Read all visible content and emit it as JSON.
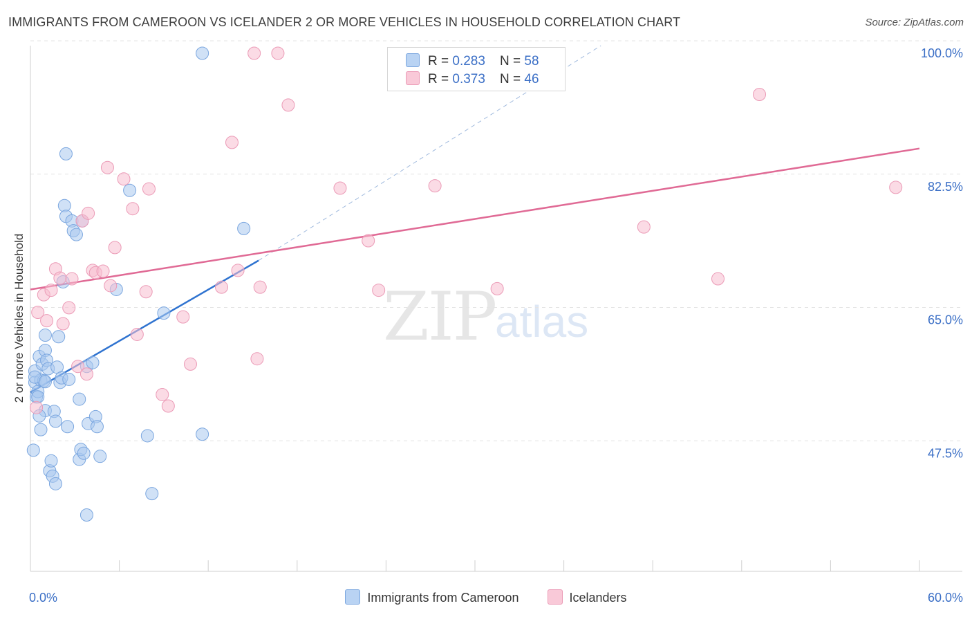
{
  "chart_data": {
    "type": "scatter",
    "title": "IMMIGRANTS FROM CAMEROON VS ICELANDER 2 OR MORE VEHICLES IN HOUSEHOLD CORRELATION CHART",
    "source": "Source: ZipAtlas.com",
    "xlabel": "",
    "ylabel": "2 or more Vehicles in Household",
    "xlim": [
      0,
      60
    ],
    "ylim": [
      32,
      101
    ],
    "x_tick_labels": [
      "0.0%",
      "60.0%"
    ],
    "y_ticks": [
      {
        "value": 100.0,
        "label": "100.0%"
      },
      {
        "value": 82.5,
        "label": "82.5%"
      },
      {
        "value": 65.0,
        "label": "65.0%"
      },
      {
        "value": 47.5,
        "label": "47.5%"
      }
    ],
    "watermark": {
      "zip": "ZIP",
      "atlas": "atlas"
    },
    "legend": [
      {
        "label": "R = ",
        "r": "0.283",
        "n_label": "N = ",
        "n": "58"
      },
      {
        "label": "R = ",
        "r": "0.373",
        "n_label": "N = ",
        "n": "46"
      }
    ],
    "series": [
      {
        "name": "Immigrants from Cameroon",
        "color": "#a9c8ef",
        "stroke": "#7aa6df",
        "line_color": "#2f73d0",
        "trend": {
          "x0": 0.0,
          "y0": 55.5,
          "x1": 15.4,
          "y1": 72.8,
          "dash_to_x": 38.5,
          "dash_to_y": 101
        },
        "points": [
          [
            0.2,
            47.9
          ],
          [
            0.3,
            58.3
          ],
          [
            0.3,
            56.8
          ],
          [
            0.4,
            54.9
          ],
          [
            0.5,
            55.6
          ],
          [
            0.6,
            60.2
          ],
          [
            0.7,
            50.6
          ],
          [
            0.7,
            57.1
          ],
          [
            0.8,
            59.2
          ],
          [
            0.9,
            57.0
          ],
          [
            1.0,
            61.0
          ],
          [
            1.0,
            63.0
          ],
          [
            1.0,
            53.1
          ],
          [
            1.1,
            59.7
          ],
          [
            1.2,
            58.6
          ],
          [
            1.3,
            45.2
          ],
          [
            1.4,
            46.5
          ],
          [
            1.5,
            44.5
          ],
          [
            1.6,
            53.0
          ],
          [
            1.7,
            43.5
          ],
          [
            1.7,
            51.7
          ],
          [
            1.8,
            58.8
          ],
          [
            1.9,
            62.8
          ],
          [
            2.0,
            56.8
          ],
          [
            2.1,
            57.4
          ],
          [
            2.2,
            70.0
          ],
          [
            2.3,
            80.0
          ],
          [
            2.4,
            78.6
          ],
          [
            2.4,
            86.8
          ],
          [
            2.5,
            51.0
          ],
          [
            2.6,
            57.2
          ],
          [
            2.8,
            78.0
          ],
          [
            2.9,
            76.7
          ],
          [
            3.1,
            76.2
          ],
          [
            3.3,
            54.6
          ],
          [
            3.3,
            46.7
          ],
          [
            3.4,
            48.0
          ],
          [
            3.5,
            78.0
          ],
          [
            3.6,
            47.5
          ],
          [
            3.8,
            39.4
          ],
          [
            3.8,
            58.9
          ],
          [
            3.9,
            51.4
          ],
          [
            4.2,
            59.4
          ],
          [
            4.4,
            52.3
          ],
          [
            4.5,
            51.0
          ],
          [
            4.7,
            47.1
          ],
          [
            5.8,
            69.0
          ],
          [
            6.7,
            82.0
          ],
          [
            7.9,
            49.8
          ],
          [
            8.2,
            42.2
          ],
          [
            9.0,
            65.9
          ],
          [
            11.6,
            100.0
          ],
          [
            11.6,
            50.0
          ],
          [
            14.4,
            77.0
          ],
          [
            0.3,
            57.5
          ],
          [
            0.5,
            54.9
          ],
          [
            0.6,
            52.4
          ],
          [
            1.0,
            56.9
          ]
        ]
      },
      {
        "name": "Icelanders",
        "color": "#f7bdd0",
        "stroke": "#eb9ab6",
        "line_color": "#e06a95",
        "trend": {
          "x0": 0.0,
          "y0": 69.0,
          "x1": 60.0,
          "y1": 87.5
        },
        "points": [
          [
            0.4,
            53.5
          ],
          [
            0.5,
            66.0
          ],
          [
            0.9,
            68.3
          ],
          [
            1.1,
            64.9
          ],
          [
            1.4,
            68.9
          ],
          [
            1.7,
            71.7
          ],
          [
            2.0,
            70.5
          ],
          [
            2.2,
            64.5
          ],
          [
            2.6,
            66.6
          ],
          [
            2.8,
            70.4
          ],
          [
            3.2,
            58.9
          ],
          [
            3.5,
            78.0
          ],
          [
            3.8,
            57.9
          ],
          [
            3.9,
            79.0
          ],
          [
            4.2,
            71.5
          ],
          [
            4.4,
            71.2
          ],
          [
            4.9,
            71.4
          ],
          [
            5.2,
            85.0
          ],
          [
            5.4,
            69.5
          ],
          [
            5.7,
            74.5
          ],
          [
            6.3,
            83.5
          ],
          [
            6.9,
            79.6
          ],
          [
            7.2,
            63.1
          ],
          [
            7.8,
            68.7
          ],
          [
            8.0,
            82.2
          ],
          [
            8.9,
            55.2
          ],
          [
            9.3,
            53.7
          ],
          [
            10.3,
            65.4
          ],
          [
            10.8,
            59.2
          ],
          [
            12.9,
            69.3
          ],
          [
            13.6,
            88.3
          ],
          [
            14.0,
            71.5
          ],
          [
            15.1,
            100.0
          ],
          [
            15.3,
            59.9
          ],
          [
            15.5,
            69.3
          ],
          [
            16.7,
            100.0
          ],
          [
            17.4,
            93.2
          ],
          [
            20.9,
            82.3
          ],
          [
            22.8,
            75.4
          ],
          [
            23.5,
            68.9
          ],
          [
            27.3,
            82.6
          ],
          [
            31.5,
            69.1
          ],
          [
            41.4,
            77.2
          ],
          [
            46.4,
            70.4
          ],
          [
            49.2,
            94.6
          ],
          [
            58.4,
            82.4
          ]
        ]
      }
    ]
  }
}
